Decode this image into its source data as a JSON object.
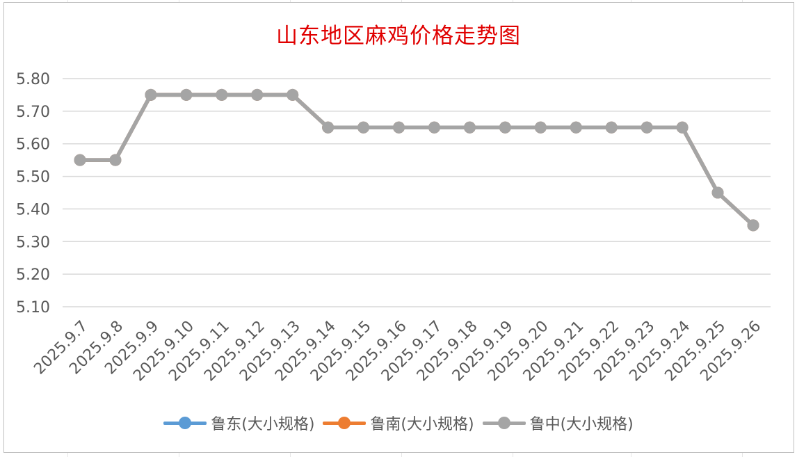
{
  "chart_data": {
    "type": "line",
    "title": "山东地区麻鸡价格走势图",
    "categories": [
      "2025.9.7",
      "2025.9.8",
      "2025.9.9",
      "2025.9.10",
      "2025.9.11",
      "2025.9.12",
      "2025.9.13",
      "2025.9.14",
      "2025.9.15",
      "2025.9.16",
      "2025.9.17",
      "2025.9.18",
      "2025.9.19",
      "2025.9.20",
      "2025.9.21",
      "2025.9.22",
      "2025.9.23",
      "2025.9.24",
      "2025.9.25",
      "2025.9.26"
    ],
    "yticks": [
      "5.80",
      "5.70",
      "5.60",
      "5.50",
      "5.40",
      "5.30",
      "5.20",
      "5.10"
    ],
    "ylim": [
      5.1,
      5.8
    ],
    "grid": true,
    "legend_position": "bottom",
    "series": [
      {
        "name": "鲁东(大小规格)",
        "color": "#5b9bd5",
        "values": [
          5.55,
          5.55,
          5.75,
          5.75,
          5.75,
          5.75,
          5.75,
          5.65,
          5.65,
          5.65,
          5.65,
          5.65,
          5.65,
          5.65,
          5.65,
          5.65,
          5.65,
          5.65,
          5.45,
          5.35
        ]
      },
      {
        "name": "鲁南(大小规格)",
        "color": "#ed7d31",
        "values": [
          5.55,
          5.55,
          5.75,
          5.75,
          5.75,
          5.75,
          5.75,
          5.65,
          5.65,
          5.65,
          5.65,
          5.65,
          5.65,
          5.65,
          5.65,
          5.65,
          5.65,
          5.65,
          5.45,
          5.35
        ]
      },
      {
        "name": "鲁中(大小规格)",
        "color": "#a5a5a5",
        "values": [
          5.55,
          5.55,
          5.75,
          5.75,
          5.75,
          5.75,
          5.75,
          5.65,
          5.65,
          5.65,
          5.65,
          5.65,
          5.65,
          5.65,
          5.65,
          5.65,
          5.65,
          5.65,
          5.45,
          5.35
        ]
      }
    ]
  }
}
